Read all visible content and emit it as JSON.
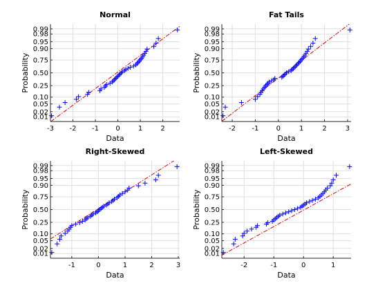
{
  "figure": {
    "background": "#ffffff",
    "axis_color": "#262626",
    "grid_color": "#dfdfdf",
    "point_color": "#0000ff",
    "fit_color": "#e00000"
  },
  "chart_data": [
    {
      "type": "scatter",
      "title": "Normal",
      "xlabel": "Data",
      "ylabel": "Probability",
      "xlim": [
        -3,
        2.75
      ],
      "xticks": [
        -3,
        -2,
        -1,
        0,
        1,
        2
      ],
      "yticks": [
        0.01,
        0.02,
        0.05,
        0.1,
        0.25,
        0.5,
        0.75,
        0.9,
        0.95,
        0.98,
        0.99
      ],
      "ytick_labels": [
        "0.01",
        "0.02",
        "0.05",
        "0.10",
        "0.25",
        "0.50",
        "0.75",
        "0.90",
        "0.95",
        "0.98",
        "0.99"
      ],
      "grid": true,
      "x": [
        -2.95,
        -2.6,
        -2.35,
        -1.85,
        -1.75,
        -1.35,
        -1.3,
        -0.8,
        -0.75,
        -0.6,
        -0.55,
        -0.5,
        -0.35,
        -0.25,
        -0.2,
        -0.15,
        -0.1,
        -0.05,
        0.0,
        0.05,
        0.1,
        0.15,
        0.2,
        0.3,
        0.35,
        0.45,
        0.55,
        0.7,
        0.8,
        0.85,
        0.9,
        0.95,
        1.0,
        1.05,
        1.1,
        1.15,
        1.2,
        1.25,
        1.3,
        1.6,
        1.7,
        1.8,
        2.65
      ],
      "fit": {
        "x1": -2.7,
        "p1": 0.01,
        "x2": 2.6,
        "p2": 0.99
      }
    },
    {
      "type": "scatter",
      "title": "Fat Tails",
      "xlabel": "Data",
      "ylabel": "Probability",
      "xlim": [
        -2.45,
        3.15
      ],
      "xticks": [
        -2,
        -1,
        0,
        1,
        2,
        3
      ],
      "yticks": [
        0.01,
        0.02,
        0.05,
        0.1,
        0.25,
        0.5,
        0.75,
        0.9,
        0.95,
        0.98,
        0.99
      ],
      "ytick_labels": [
        "0.01",
        "0.02",
        "0.05",
        "0.10",
        "0.25",
        "0.50",
        "0.75",
        "0.90",
        "0.95",
        "0.98",
        "0.99"
      ],
      "grid": true,
      "x": [
        -2.4,
        -2.3,
        -1.6,
        -1.0,
        -0.9,
        -0.8,
        -0.75,
        -0.7,
        -0.65,
        -0.6,
        -0.55,
        -0.5,
        -0.45,
        -0.4,
        -0.3,
        -0.2,
        -0.15,
        0.15,
        0.2,
        0.25,
        0.3,
        0.35,
        0.45,
        0.55,
        0.6,
        0.65,
        0.7,
        0.75,
        0.8,
        0.85,
        0.9,
        0.95,
        1.0,
        1.05,
        1.1,
        1.15,
        1.2,
        1.25,
        1.3,
        1.4,
        1.5,
        1.6,
        3.1
      ],
      "fit": {
        "x1": -2.2,
        "p1": 0.01,
        "x2": 2.8,
        "p2": 0.99
      }
    },
    {
      "type": "scatter",
      "title": "Right-Skewed",
      "xlabel": "Data",
      "ylabel": "Probability",
      "xlim": [
        -1.8,
        3.05
      ],
      "xticks": [
        -1,
        0,
        1,
        2,
        3
      ],
      "yticks": [
        0.01,
        0.02,
        0.05,
        0.1,
        0.25,
        0.5,
        0.75,
        0.9,
        0.95,
        0.98,
        0.99
      ],
      "ytick_labels": [
        "0.01",
        "0.02",
        "0.05",
        "0.10",
        "0.25",
        "0.50",
        "0.75",
        "0.90",
        "0.95",
        "0.98",
        "0.99"
      ],
      "grid": true,
      "x": [
        -1.75,
        -1.55,
        -1.45,
        -1.4,
        -1.25,
        -1.15,
        -1.1,
        -1.05,
        -1.0,
        -0.85,
        -0.7,
        -0.6,
        -0.5,
        -0.45,
        -0.4,
        -0.3,
        -0.25,
        -0.2,
        -0.1,
        -0.05,
        0.0,
        0.05,
        0.1,
        0.15,
        0.2,
        0.3,
        0.35,
        0.4,
        0.5,
        0.55,
        0.6,
        0.7,
        0.75,
        0.8,
        0.9,
        1.0,
        1.1,
        1.15,
        1.5,
        1.75,
        2.15,
        2.25,
        2.95
      ],
      "fit": {
        "x1": -1.8,
        "p1": 0.06,
        "x2": 2.55,
        "p2": 0.99
      }
    },
    {
      "type": "scatter",
      "title": "Left-Skewed",
      "xlabel": "Data",
      "ylabel": "Probability",
      "xlim": [
        -2.75,
        1.6
      ],
      "xticks": [
        -2,
        -1,
        0,
        1
      ],
      "yticks": [
        0.01,
        0.02,
        0.05,
        0.1,
        0.25,
        0.5,
        0.75,
        0.9,
        0.95,
        0.98,
        0.99
      ],
      "ytick_labels": [
        "0.01",
        "0.02",
        "0.05",
        "0.10",
        "0.25",
        "0.50",
        "0.75",
        "0.90",
        "0.95",
        "0.98",
        "0.99"
      ],
      "grid": true,
      "x": [
        -2.7,
        -2.35,
        -2.3,
        -2.05,
        -2.0,
        -1.9,
        -1.75,
        -1.6,
        -1.55,
        -1.25,
        -1.2,
        -1.05,
        -1.0,
        -0.95,
        -0.9,
        -0.85,
        -0.8,
        -0.7,
        -0.6,
        -0.5,
        -0.4,
        -0.3,
        -0.2,
        -0.1,
        -0.05,
        0.0,
        0.05,
        0.1,
        0.2,
        0.3,
        0.4,
        0.5,
        0.55,
        0.6,
        0.65,
        0.7,
        0.75,
        0.8,
        0.9,
        0.95,
        1.0,
        1.1,
        1.55
      ],
      "fit": {
        "x1": -2.65,
        "p1": 0.01,
        "x2": 1.55,
        "p2": 0.905
      }
    }
  ]
}
